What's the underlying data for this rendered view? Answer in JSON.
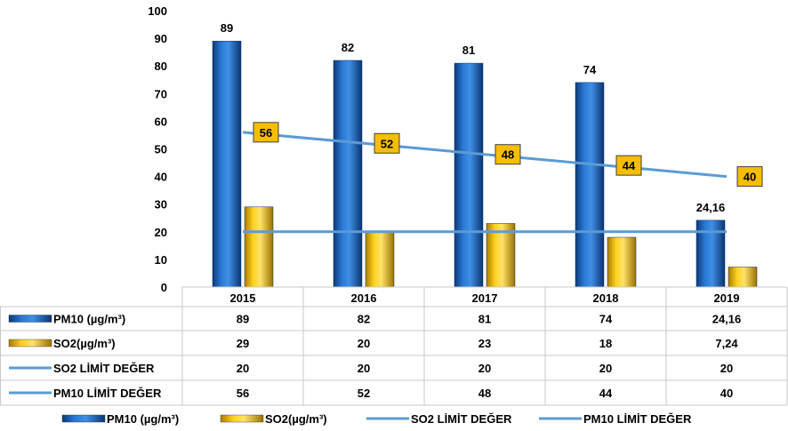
{
  "chart_data": {
    "type": "bar",
    "categories": [
      "2015",
      "2016",
      "2017",
      "2018",
      "2019"
    ],
    "ylim": [
      0,
      100
    ],
    "yticks": [
      "0",
      "10",
      "20",
      "30",
      "40",
      "50",
      "60",
      "70",
      "80",
      "90",
      "100"
    ],
    "series": [
      {
        "name": "PM10 (µg/m³)",
        "kind": "bar",
        "color": "#1f5fb4",
        "values": [
          89,
          82,
          81,
          74,
          24.16
        ],
        "labels": [
          "89",
          "82",
          "81",
          "74",
          "24,16"
        ]
      },
      {
        "name": "SO2(µg/m³)",
        "kind": "bar",
        "color": "#f2c200",
        "values": [
          29,
          20,
          23,
          18,
          7.24
        ],
        "labels": [
          "29",
          "20",
          "23",
          "18",
          "7,24"
        ]
      },
      {
        "name": "SO2 LİMİT DEĞER",
        "kind": "line",
        "color": "#5b9bd5",
        "values": [
          20,
          20,
          20,
          20,
          20
        ],
        "labels": [
          "20",
          "20",
          "20",
          "20",
          "20"
        ]
      },
      {
        "name": "PM10 LİMİT DEĞER",
        "kind": "line",
        "color": "#5b9bd5",
        "values": [
          56,
          52,
          48,
          44,
          40
        ],
        "labels": [
          "56",
          "52",
          "48",
          "44",
          "40"
        ]
      }
    ],
    "grid": false,
    "data_table": true,
    "legend": "bottom"
  }
}
